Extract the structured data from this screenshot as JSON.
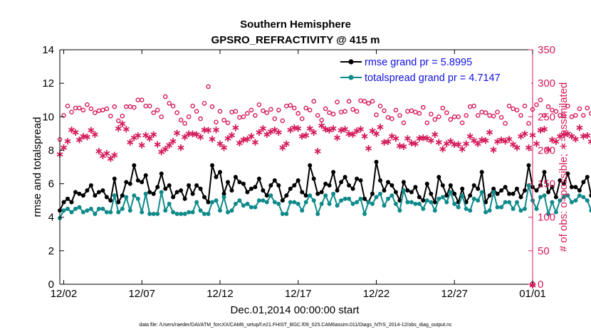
{
  "chart_data": {
    "type": "line",
    "title": "Southern Hemisphere",
    "subtitle": "GPSRO_REFRACTIVITY @ 415 m",
    "xlabel": "Dec.01,2014 00:00:00 start",
    "ylabel": "rmse and totalspread",
    "ylabel_right": "# of obs: o=possible; ∗=assimilated",
    "footnote": "data file: /Users/raeder/DAI/ATM_forcXX/CAM6_setup/f.e21.FHIST_BGC.f09_025.CAM6assim.011/Diags_NTrS_2014-12/obs_diag_output.nc",
    "x_unit": "days since Dec.01,2014 00:00",
    "xlim": [
      0.75,
      31.0
    ],
    "ylim": [
      0,
      14
    ],
    "ylim_right": [
      0,
      350
    ],
    "x_ticks": [
      {
        "value": 1.0,
        "label": "12/02"
      },
      {
        "value": 6.0,
        "label": "12/07"
      },
      {
        "value": 11.0,
        "label": "12/12"
      },
      {
        "value": 16.0,
        "label": "12/17"
      },
      {
        "value": 21.0,
        "label": "12/22"
      },
      {
        "value": 26.0,
        "label": "12/27"
      },
      {
        "value": 31.0,
        "label": "01/01"
      }
    ],
    "y_ticks": [
      "0",
      "2",
      "4",
      "6",
      "8",
      "10",
      "12",
      "14"
    ],
    "y_ticks_right": [
      "0",
      "50",
      "100",
      "150",
      "200",
      "250",
      "300",
      "350"
    ],
    "legend": [
      {
        "label": "rmse grand pr = 5.8995",
        "color": "#000000"
      },
      {
        "label": "totalspread grand pr = 4.7147",
        "color": "#0f8a8a"
      }
    ],
    "colors": {
      "rmse": "#000000",
      "spread": "#0f8a8a",
      "obs": "#d41a5a"
    },
    "x_start": 0.75,
    "x_step": 0.25,
    "series": [
      {
        "name": "rmse grand pr = 5.8995",
        "axis": "left",
        "values": [
          4.4,
          4.9,
          5.1,
          4.9,
          5.5,
          5.4,
          5.3,
          5.6,
          5.9,
          5.3,
          5.5,
          5.6,
          5.2,
          5.0,
          6.3,
          4.9,
          5.3,
          6.1,
          6.0,
          7.1,
          6.2,
          6.1,
          6.5,
          5.5,
          5.4,
          5.8,
          6.6,
          5.7,
          5.9,
          5.2,
          5.5,
          5.6,
          5.1,
          5.9,
          5.4,
          5.9,
          5.7,
          5.2,
          4.9,
          7.1,
          6.4,
          6.7,
          5.4,
          6.1,
          5.6,
          6.4,
          6.1,
          6.0,
          5.5,
          5.7,
          5.8,
          6.3,
          5.6,
          5.3,
          5.9,
          6.2,
          5.9,
          5.0,
          5.3,
          5.7,
          5.9,
          6.2,
          5.5,
          5.3,
          7.1,
          6.3,
          5.4,
          5.5,
          6.0,
          5.9,
          6.7,
          5.6,
          6.1,
          6.4,
          5.9,
          5.7,
          6.3,
          6.2,
          5.1,
          4.9,
          5.4,
          7.3,
          6.2,
          5.6,
          6.1,
          5.9,
          5.5,
          5.0,
          6.1,
          5.6,
          5.5,
          5.8,
          5.2,
          5.0,
          6.0,
          5.4,
          4.9,
          6.4,
          5.9,
          5.3,
          5.9,
          5.4,
          4.9,
          5.7,
          4.9,
          5.3,
          5.9,
          5.7,
          6.7,
          4.9,
          5.3,
          5.7,
          5.4,
          5.6,
          5.8,
          5.4,
          5.4,
          5.7,
          5.2,
          5.6,
          7.1,
          5.8,
          5.6,
          5.9,
          6.7,
          5.5,
          5.8,
          5.2,
          6.2,
          6.0,
          6.6,
          5.8,
          5.8,
          5.6,
          6.1,
          6.4,
          5.3,
          6.1,
          5.6,
          5.7,
          5.1,
          5.4,
          5.7,
          5.6,
          5.4,
          5.1,
          5.2,
          6.3,
          5.3,
          5.9,
          5.5,
          5.9,
          5.3,
          5.1,
          5.1,
          5.0,
          5.4,
          5.7,
          5.6,
          5.5,
          5.2,
          6.3,
          7.0,
          6.3,
          6.5,
          5.6,
          7.3,
          7.1,
          6.1,
          5.8,
          6.4,
          7.0,
          6.9,
          6.3,
          6.2,
          7.0,
          6.7,
          5.9,
          4.9,
          5.2,
          5.8,
          6.4,
          6.4,
          6.2,
          6.6,
          7.5,
          6.3,
          6.2,
          6.1,
          6.1,
          5.9,
          5.7,
          5.6,
          5.9,
          6.1,
          6.2,
          6.4,
          5.6,
          5.1
        ]
      },
      {
        "name": "totalspread grand pr = 4.7147",
        "axis": "left",
        "values": [
          3.95,
          4.4,
          4.5,
          4.3,
          4.5,
          4.6,
          4.3,
          4.4,
          4.5,
          4.2,
          4.5,
          4.5,
          4.3,
          4.3,
          5.3,
          4.3,
          4.5,
          5.2,
          4.4,
          5.3,
          5.1,
          4.3,
          5.4,
          4.2,
          4.2,
          4.2,
          5.5,
          4.4,
          4.8,
          4.3,
          4.2,
          4.2,
          4.2,
          4.3,
          4.3,
          4.9,
          4.4,
          4.2,
          4.2,
          4.9,
          5.0,
          4.4,
          5.2,
          4.3,
          4.4,
          4.8,
          5.0,
          4.7,
          4.8,
          4.6,
          4.6,
          5.0,
          5.0,
          4.9,
          5.3,
          4.9,
          4.8,
          4.2,
          4.2,
          4.9,
          4.9,
          4.8,
          4.4,
          4.9,
          5.3,
          5.0,
          4.2,
          4.8,
          5.3,
          4.8,
          5.4,
          4.7,
          5.0,
          5.1,
          5.1,
          4.8,
          4.9,
          5.1,
          4.2,
          4.9,
          4.8,
          5.2,
          5.4,
          4.7,
          5.1,
          5.3,
          4.8,
          4.4,
          5.6,
          4.9,
          4.9,
          4.8,
          4.8,
          4.5,
          5.0,
          4.9,
          4.4,
          5.1,
          5.2,
          4.9,
          5.5,
          4.8,
          4.6,
          5.3,
          4.5,
          4.4,
          5.1,
          5.0,
          5.5,
          4.3,
          4.4,
          5.5,
          4.6,
          4.6,
          4.9,
          4.9,
          4.5,
          4.9,
          4.4,
          4.5,
          5.9,
          5.0,
          4.5,
          5.2,
          5.3,
          4.2,
          4.9,
          4.3,
          5.0,
          5.2,
          5.3,
          4.9,
          5.0,
          5.3,
          5.2,
          5.0,
          4.4,
          5.3,
          4.4,
          4.4,
          4.4,
          4.5,
          4.4,
          4.5,
          4.4,
          4.4,
          4.4,
          5.1,
          4.4,
          4.5,
          4.5,
          4.4,
          4.4,
          4.5,
          4.4,
          4.4,
          4.5,
          4.4,
          4.3,
          4.5,
          4.3,
          5.1,
          5.6,
          5.3,
          5.6,
          4.4,
          5.4,
          5.6,
          5.3,
          4.8,
          5.3,
          5.7,
          5.8,
          5.4,
          5.4,
          6.2,
          5.4,
          4.6,
          4.6,
          4.4,
          4.8,
          5.5,
          5.4,
          5.4,
          5.3,
          6.4,
          4.8,
          4.8,
          4.8,
          4.6,
          4.6,
          4.6,
          4.6,
          4.7,
          4.8,
          4.7,
          4.5,
          4.9,
          4.6
        ]
      },
      {
        "name": "obs possible",
        "axis": "right",
        "marker": "circle",
        "values": [
          216,
          252,
          266,
          257,
          263,
          263,
          260,
          268,
          262,
          256,
          259,
          260,
          262,
          251,
          265,
          244,
          251,
          265,
          265,
          264,
          275,
          275,
          266,
          266,
          256,
          260,
          250,
          280,
          270,
          266,
          256,
          245,
          240,
          250,
          266,
          258,
          247,
          270,
          295,
          265,
          242,
          258,
          245,
          241,
          257,
          258,
          249,
          250,
          255,
          260,
          252,
          268,
          259,
          256,
          261,
          247,
          260,
          244,
          266,
          267,
          263,
          255,
          247,
          263,
          260,
          273,
          252,
          245,
          262,
          256,
          254,
          272,
          257,
          258,
          273,
          261,
          258,
          274,
          273,
          270,
          273,
          253,
          266,
          259,
          249,
          247,
          260,
          252,
          241,
          258,
          259,
          257,
          255,
          264,
          241,
          254,
          246,
          250,
          263,
          256,
          246,
          250,
          250,
          241,
          252,
          265,
          266,
          252,
          257,
          256,
          252,
          251,
          257,
          249,
          240,
          266,
          262,
          260,
          252,
          266,
          240,
          261,
          268,
          275,
          252,
          265,
          260,
          258,
          252,
          252,
          266,
          250,
          252,
          262,
          252,
          263,
          255,
          267,
          261,
          256,
          240,
          260,
          261,
          263,
          250,
          252,
          265,
          252,
          257,
          259,
          249,
          258,
          258,
          259,
          257,
          258,
          257,
          262,
          248,
          255,
          260,
          271,
          260,
          252,
          244,
          257,
          262,
          278,
          254,
          257,
          252,
          245,
          252,
          258,
          267,
          282,
          254,
          257,
          245,
          252,
          256,
          259,
          265,
          257,
          264,
          270,
          253,
          257,
          262,
          269,
          274,
          266,
          262,
          257
        ]
      },
      {
        "name": "obs assimilated",
        "axis": "right",
        "marker": "star",
        "values": [
          195,
          205,
          215,
          232,
          228,
          217,
          222,
          221,
          231,
          225,
          200,
          193,
          197,
          189,
          194,
          234,
          241,
          233,
          213,
          220,
          223,
          209,
          224,
          219,
          225,
          210,
          199,
          203,
          209,
          215,
          227,
          205,
          221,
          226,
          226,
          225,
          221,
          232,
          231,
          218,
          232,
          211,
          205,
          219,
          224,
          235,
          212,
          217,
          218,
          222,
          213,
          228,
          234,
          225,
          229,
          232,
          228,
          205,
          211,
          232,
          235,
          234,
          222,
          224,
          234,
          228,
          200,
          238,
          233,
          231,
          234,
          220,
          231,
          233,
          226,
          225,
          230,
          233,
          222,
          204,
          230,
          226,
          236,
          213,
          214,
          222,
          219,
          208,
          207,
          219,
          212,
          211,
          219,
          220,
          219,
          216,
          225,
          213,
          203,
          211,
          215,
          210,
          210,
          203,
          211,
          222,
          216,
          211,
          217,
          216,
          228,
          202,
          214,
          217,
          215,
          218,
          210,
          205,
          222,
          226,
          205,
          224,
          211,
          231,
          233,
          202,
          217,
          214,
          222,
          225,
          226,
          222,
          218,
          235,
          222,
          223,
          214,
          226,
          217,
          220,
          207,
          205,
          220,
          225,
          212,
          215,
          218,
          214,
          206,
          219,
          205,
          222,
          219,
          210,
          215,
          205,
          220,
          205,
          206,
          219,
          225,
          220,
          221,
          214,
          227,
          220,
          216,
          202,
          223,
          226,
          218,
          212,
          218,
          225,
          227,
          230,
          223,
          231,
          228,
          220,
          215,
          220,
          228,
          216,
          222,
          222,
          225,
          215,
          217,
          214,
          218,
          217,
          220,
          215
        ]
      }
    ]
  }
}
